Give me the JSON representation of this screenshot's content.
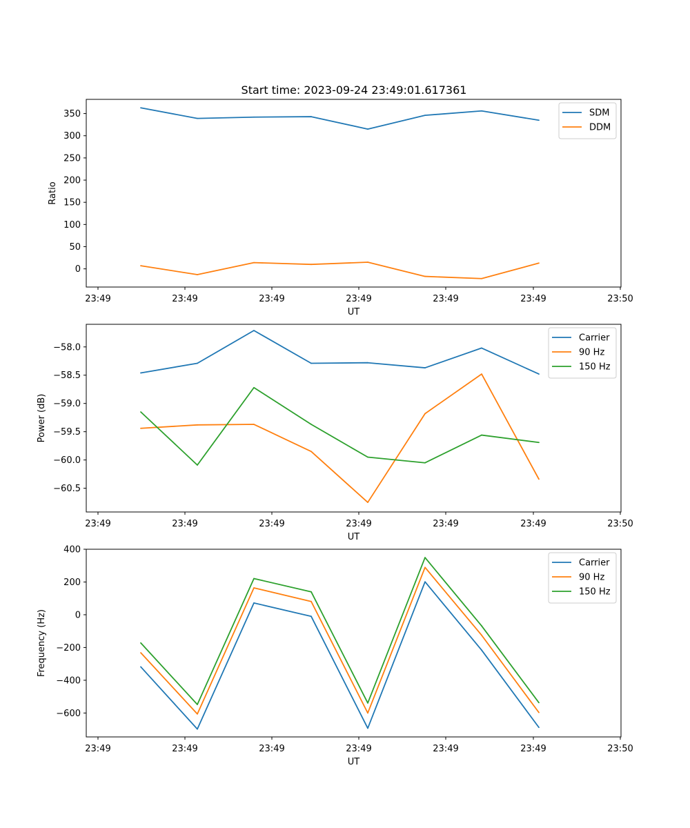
{
  "figure_title": "Start time: 2023-09-24 23:49:01.617361",
  "colors": {
    "c0": "#1f77b4",
    "c1": "#ff7f0e",
    "c2": "#2ca02c"
  },
  "chart_data": [
    {
      "type": "line",
      "title": "Start time: 2023-09-24 23:49:01.617361",
      "xlabel": "UT",
      "ylabel": "Ratio",
      "x_ticks": [
        "23:49",
        "23:49",
        "23:49",
        "23:49",
        "23:49",
        "23:49",
        "23:50"
      ],
      "y_ticks": [
        0,
        50,
        100,
        150,
        200,
        250,
        300,
        350
      ],
      "ylim": [
        -41,
        382
      ],
      "legend": "top-right",
      "series": [
        {
          "name": "SDM",
          "color": "#1f77b4",
          "values": [
            363,
            339,
            342,
            343,
            315,
            346,
            356,
            335
          ]
        },
        {
          "name": "DDM",
          "color": "#ff7f0e",
          "values": [
            7,
            -13,
            14,
            10,
            15,
            -17,
            -22,
            13
          ]
        }
      ]
    },
    {
      "type": "line",
      "title": "",
      "xlabel": "UT",
      "ylabel": "Power (dB)",
      "x_ticks": [
        "23:49",
        "23:49",
        "23:49",
        "23:49",
        "23:49",
        "23:49",
        "23:50"
      ],
      "y_ticks": [
        -58.0,
        -58.5,
        -59.0,
        -59.5,
        -60.0,
        -60.5
      ],
      "y_tick_labels": [
        "−58.0",
        "−58.5",
        "−59.0",
        "−59.5",
        "−60.0",
        "−60.5"
      ],
      "ylim": [
        -60.92,
        -57.6
      ],
      "legend": "top-right",
      "series": [
        {
          "name": "Carrier",
          "color": "#1f77b4",
          "values": [
            -58.46,
            -58.29,
            -57.71,
            -58.29,
            -58.28,
            -58.37,
            -58.02,
            -58.48
          ]
        },
        {
          "name": "90 Hz",
          "color": "#ff7f0e",
          "values": [
            -59.44,
            -59.38,
            -59.37,
            -59.85,
            -60.75,
            -59.18,
            -58.48,
            -60.34
          ]
        },
        {
          "name": "150 Hz",
          "color": "#2ca02c",
          "values": [
            -59.15,
            -60.09,
            -58.72,
            -59.37,
            -59.95,
            -60.05,
            -59.56,
            -59.69
          ]
        }
      ]
    },
    {
      "type": "line",
      "title": "",
      "xlabel": "UT",
      "ylabel": "Frequency (Hz)",
      "x_ticks": [
        "23:49",
        "23:49",
        "23:49",
        "23:49",
        "23:49",
        "23:49",
        "23:50"
      ],
      "y_ticks": [
        400,
        200,
        0,
        -200,
        -400,
        -600
      ],
      "y_tick_labels": [
        "400",
        "200",
        "0",
        "−200",
        "−400",
        "−600"
      ],
      "ylim": [
        -746,
        400
      ],
      "legend": "top-right",
      "series": [
        {
          "name": "Carrier",
          "color": "#1f77b4",
          "values": [
            -318,
            -698,
            72,
            -10,
            -693,
            201,
            -216,
            -688
          ]
        },
        {
          "name": "90 Hz",
          "color": "#ff7f0e",
          "values": [
            -232,
            -606,
            164,
            81,
            -600,
            289,
            -125,
            -597
          ]
        },
        {
          "name": "150 Hz",
          "color": "#2ca02c",
          "values": [
            -172,
            -548,
            221,
            140,
            -539,
            349,
            -68,
            -537
          ]
        }
      ]
    }
  ]
}
